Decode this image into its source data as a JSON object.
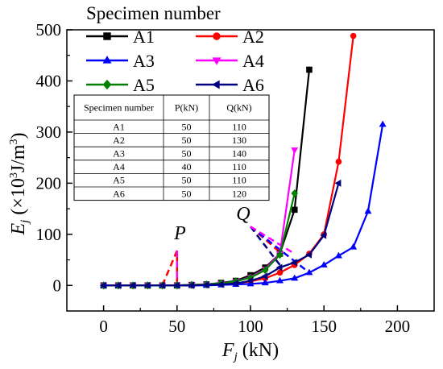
{
  "chart_data": {
    "type": "line",
    "xlabel": {
      "main": "F",
      "sub": "j",
      "unit": " (kN)"
    },
    "ylabel": {
      "main": "E",
      "sub": "j",
      "unit_a": " (×10",
      "unit_sup": "3",
      "unit_b": "J/m",
      "unit_sup2": "3",
      "unit_c": ")"
    },
    "xlim": [
      -25,
      225
    ],
    "ylim": [
      -50,
      500
    ],
    "xticks": [
      0,
      50,
      100,
      150,
      200
    ],
    "yticks": [
      0,
      100,
      200,
      300,
      400,
      500
    ],
    "legend_title": "Specimen number",
    "series": [
      {
        "name": "A1",
        "color": "#000000",
        "marker": "square",
        "x": [
          0,
          10,
          20,
          30,
          40,
          50,
          60,
          70,
          80,
          90,
          100,
          110,
          120,
          130,
          140
        ],
        "y": [
          0,
          0,
          0,
          0,
          0,
          0,
          1,
          2,
          5,
          9,
          20,
          35,
          62,
          148,
          422
        ]
      },
      {
        "name": "A2",
        "color": "#ff0000",
        "marker": "circle",
        "x": [
          0,
          10,
          20,
          30,
          40,
          50,
          60,
          70,
          80,
          90,
          100,
          110,
          120,
          130,
          140,
          150,
          160,
          170
        ],
        "y": [
          0,
          0,
          0,
          0,
          0,
          0,
          0,
          1,
          2,
          4,
          8,
          14,
          25,
          40,
          62,
          100,
          242,
          488
        ]
      },
      {
        "name": "A3",
        "color": "#0000ff",
        "marker": "triangle-up",
        "x": [
          0,
          10,
          20,
          30,
          40,
          50,
          60,
          70,
          80,
          90,
          100,
          110,
          120,
          130,
          140,
          150,
          160,
          170,
          180,
          190
        ],
        "y": [
          0,
          0,
          0,
          0,
          0,
          0,
          0,
          0,
          1,
          2,
          3,
          5,
          9,
          14,
          25,
          40,
          58,
          75,
          145,
          315
        ]
      },
      {
        "name": "A4",
        "color": "#ff00ff",
        "marker": "triangle-down",
        "x": [
          0,
          10,
          20,
          30,
          40,
          50,
          60,
          70,
          80,
          90,
          100,
          110,
          120,
          130
        ],
        "y": [
          0,
          0,
          0,
          0,
          0,
          0,
          1,
          2,
          4,
          8,
          16,
          32,
          62,
          265
        ]
      },
      {
        "name": "A5",
        "color": "#008000",
        "marker": "diamond",
        "x": [
          0,
          10,
          20,
          30,
          40,
          50,
          60,
          70,
          80,
          90,
          100,
          110,
          120,
          130
        ],
        "y": [
          0,
          0,
          0,
          0,
          0,
          0,
          1,
          2,
          4,
          8,
          15,
          30,
          60,
          180
        ]
      },
      {
        "name": "A6",
        "color": "#000080",
        "marker": "triangle-left",
        "x": [
          0,
          10,
          20,
          30,
          40,
          50,
          60,
          70,
          80,
          90,
          100,
          110,
          120,
          130,
          140,
          150,
          160
        ],
        "y": [
          0,
          0,
          0,
          0,
          0,
          0,
          0,
          1,
          2,
          4,
          9,
          18,
          35,
          45,
          60,
          98,
          200
        ]
      }
    ],
    "dashed_markers": [
      {
        "label": "P",
        "color": "#ff0000",
        "x": [
          40,
          50,
          50
        ],
        "y": [
          0,
          68,
          0
        ]
      },
      {
        "label": "P",
        "color": "#ff00ff",
        "x": [
          50,
          50
        ],
        "y": [
          68,
          0
        ]
      },
      {
        "label": "Q",
        "color": "#ff0000",
        "x": [
          100,
          120
        ],
        "y": [
          115,
          65
        ]
      },
      {
        "label": "Q",
        "color": "#0000ff",
        "x": [
          100,
          140
        ],
        "y": [
          115,
          25
        ]
      },
      {
        "label": "Q",
        "color": "#000080",
        "x": [
          100,
          120
        ],
        "y": [
          115,
          40
        ]
      },
      {
        "label": "Q",
        "color": "#ff00ff",
        "x": [
          100,
          130
        ],
        "y": [
          115,
          62
        ]
      }
    ],
    "annotations": [
      {
        "text": "P",
        "x": 52,
        "y": 90
      },
      {
        "text": "Q",
        "x": 95,
        "y": 128
      }
    ],
    "table": {
      "headers": [
        "Specimen number",
        "P(kN)",
        "Q(kN)"
      ],
      "rows": [
        [
          "A1",
          "50",
          "110"
        ],
        [
          "A2",
          "50",
          "130"
        ],
        [
          "A3",
          "50",
          "140"
        ],
        [
          "A4",
          "40",
          "110"
        ],
        [
          "A5",
          "50",
          "110"
        ],
        [
          "A6",
          "50",
          "120"
        ]
      ]
    },
    "grid": false,
    "legend_position": "top-left"
  }
}
